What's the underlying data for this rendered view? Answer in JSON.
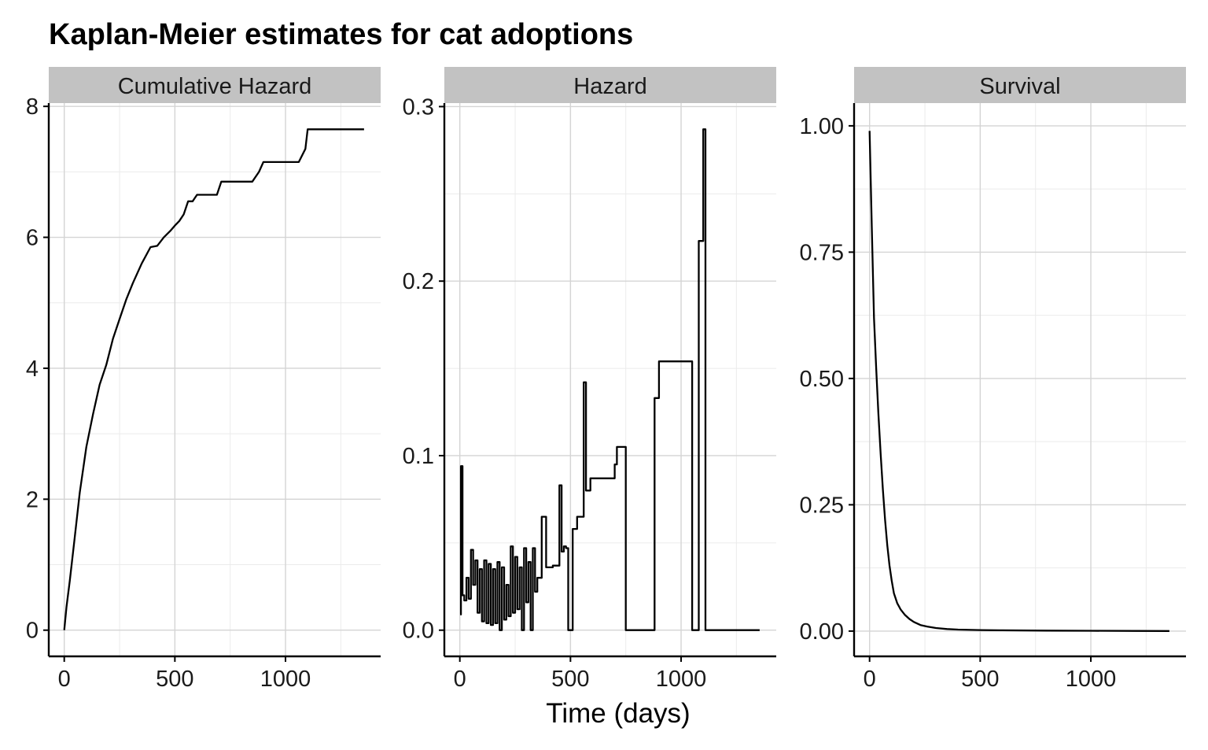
{
  "title": "Kaplan-Meier estimates for cat adoptions",
  "chart_data": [
    {
      "type": "line",
      "panel": "Cumulative Hazard",
      "xlabel": "",
      "ylabel": "",
      "xlim": [
        -70,
        1430
      ],
      "ylim": [
        -0.4,
        8.05
      ],
      "x_ticks": [
        0,
        500,
        1000
      ],
      "x_tick_labels": [
        "0",
        "500",
        "1000"
      ],
      "y_ticks": [
        0,
        2,
        4,
        6,
        8
      ],
      "y_tick_labels": [
        "0",
        "2",
        "4",
        "6",
        "8"
      ],
      "grid": true,
      "step": false,
      "x": [
        0,
        10,
        25,
        45,
        70,
        100,
        130,
        160,
        190,
        220,
        250,
        280,
        310,
        350,
        390,
        420,
        450,
        480,
        500,
        520,
        540,
        560,
        580,
        600,
        640,
        690,
        710,
        780,
        850,
        880,
        900,
        960,
        1060,
        1090,
        1100,
        1250,
        1355
      ],
      "values": [
        0,
        0.35,
        0.75,
        1.35,
        2.1,
        2.8,
        3.3,
        3.75,
        4.05,
        4.45,
        4.75,
        5.05,
        5.3,
        5.6,
        5.85,
        5.87,
        6.0,
        6.1,
        6.18,
        6.25,
        6.35,
        6.55,
        6.55,
        6.65,
        6.65,
        6.65,
        6.85,
        6.85,
        6.85,
        7.0,
        7.15,
        7.15,
        7.15,
        7.35,
        7.65,
        7.65,
        7.65
      ]
    },
    {
      "type": "line",
      "panel": "Hazard",
      "xlabel": "Time (days)",
      "ylabel": "",
      "xlim": [
        -70,
        1430
      ],
      "ylim": [
        -0.015,
        0.302
      ],
      "x_ticks": [
        0,
        500,
        1000
      ],
      "x_tick_labels": [
        "0",
        "500",
        "1000"
      ],
      "y_ticks": [
        0,
        0.1,
        0.2,
        0.3
      ],
      "y_tick_labels": [
        "0.0",
        "0.1",
        "0.2",
        "0.3"
      ],
      "grid": true,
      "step": true,
      "x": [
        2,
        5,
        12,
        20,
        30,
        40,
        50,
        60,
        70,
        80,
        90,
        100,
        110,
        120,
        130,
        140,
        150,
        160,
        170,
        180,
        190,
        200,
        210,
        220,
        230,
        240,
        250,
        260,
        270,
        280,
        290,
        300,
        310,
        320,
        330,
        340,
        350,
        370,
        390,
        400,
        420,
        450,
        460,
        470,
        480,
        490,
        500,
        510,
        530,
        560,
        570,
        590,
        640,
        700,
        710,
        730,
        750,
        780,
        840,
        880,
        900,
        950,
        1000,
        1050,
        1060,
        1080,
        1090,
        1100,
        1105,
        1110,
        1200,
        1355
      ],
      "values": [
        0.009,
        0.094,
        0.02,
        0.017,
        0.03,
        0.018,
        0.046,
        0.026,
        0.04,
        0.01,
        0.035,
        0.005,
        0.04,
        0.004,
        0.038,
        0.003,
        0.035,
        0.004,
        0.039,
        0.0,
        0.036,
        0.006,
        0.026,
        0.008,
        0.048,
        0.01,
        0.042,
        0.012,
        0.036,
        0.0,
        0.047,
        0.016,
        0.039,
        0.0,
        0.047,
        0.022,
        0.03,
        0.065,
        0.036,
        0.036,
        0.037,
        0.083,
        0.045,
        0.048,
        0.047,
        0.0,
        0.0,
        0.058,
        0.065,
        0.142,
        0.08,
        0.087,
        0.087,
        0.095,
        0.105,
        0.105,
        0.0,
        0.0,
        0.0,
        0.133,
        0.154,
        0.154,
        0.154,
        0.0,
        0.0,
        0.223,
        0.223,
        0.287,
        0.287,
        0.0,
        0.0,
        0.0
      ]
    },
    {
      "type": "line",
      "panel": "Survival",
      "xlabel": "",
      "ylabel": "",
      "xlim": [
        -70,
        1430
      ],
      "ylim": [
        -0.05,
        1.045
      ],
      "x_ticks": [
        0,
        500,
        1000
      ],
      "x_tick_labels": [
        "0",
        "500",
        "1000"
      ],
      "y_ticks": [
        0,
        0.25,
        0.5,
        0.75,
        1.0
      ],
      "y_tick_labels": [
        "0.00",
        "0.25",
        "0.50",
        "0.75",
        "1.00"
      ],
      "grid": true,
      "step": false,
      "x": [
        0,
        10,
        20,
        30,
        40,
        50,
        60,
        70,
        80,
        90,
        100,
        110,
        125,
        140,
        160,
        180,
        200,
        230,
        260,
        300,
        350,
        400,
        500,
        600,
        800,
        1000,
        1200,
        1355
      ],
      "values": [
        0.99,
        0.8,
        0.62,
        0.52,
        0.43,
        0.35,
        0.28,
        0.22,
        0.17,
        0.13,
        0.1,
        0.075,
        0.055,
        0.043,
        0.032,
        0.024,
        0.018,
        0.012,
        0.009,
        0.006,
        0.004,
        0.003,
        0.002,
        0.0015,
        0.001,
        0.0006,
        0.0003,
        0.0002
      ]
    }
  ]
}
